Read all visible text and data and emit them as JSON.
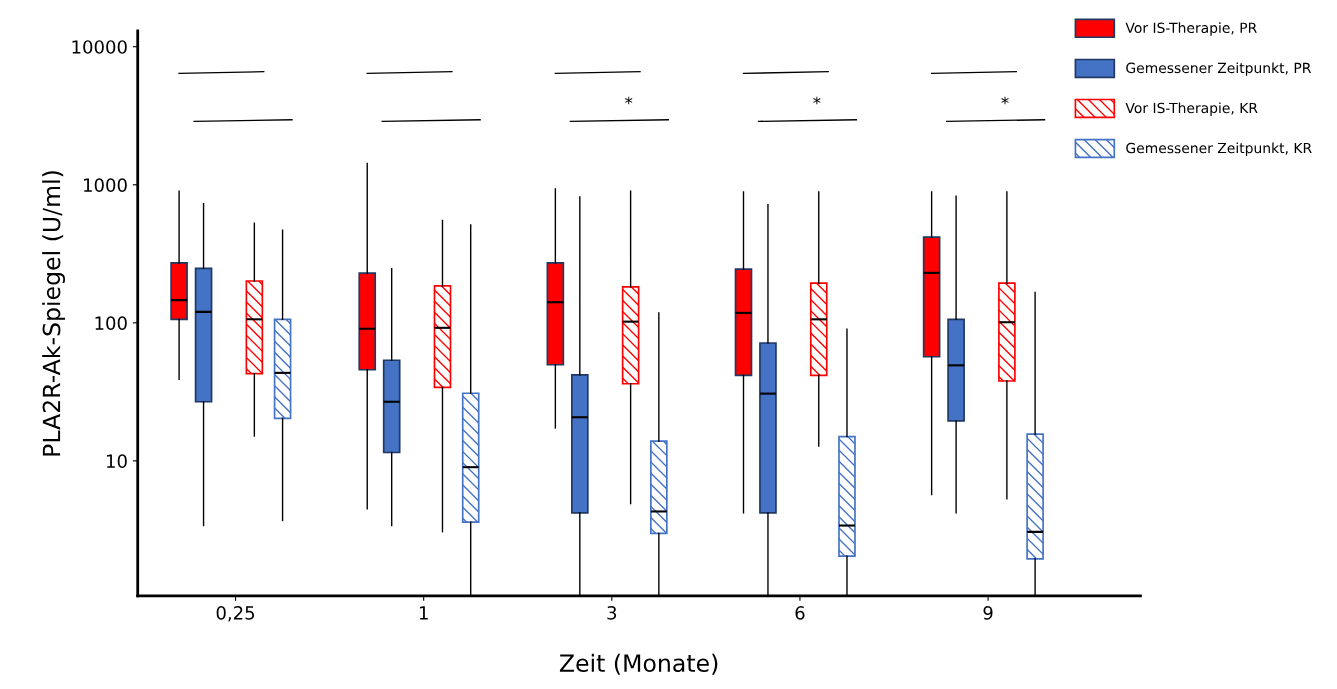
{
  "chart_data": {
    "type": "box",
    "xlabel": "Zeit (Monate)",
    "ylabel": "PLA2R-Ak-Spiegel (U/ml)",
    "categories": [
      "0,25",
      "1",
      "3",
      "6",
      "9"
    ],
    "log": "y",
    "ylim": [
      1.05,
      13000
    ],
    "yticks": [
      10,
      100,
      1000,
      10000
    ],
    "grid": false,
    "legend": "top right",
    "series": [
      {
        "name": "Vor IS-Therapie, PR",
        "color": "#ff0000",
        "boxes": [
          {
            "low": 39,
            "q1": 106,
            "median": 146,
            "q3": 272,
            "high": 900
          },
          {
            "low": 4.5,
            "q1": 45.7,
            "median": 90.6,
            "q3": 229,
            "high": 1430
          },
          {
            "low": 17.3,
            "q1": 49.7,
            "median": 141,
            "q3": 272,
            "high": 933
          },
          {
            "low": 4.2,
            "q1": 41.6,
            "median": 118,
            "q3": 245,
            "high": 887
          },
          {
            "low": 5.7,
            "q1": 56.8,
            "median": 230,
            "q3": 418,
            "high": 887
          }
        ]
      },
      {
        "name": "Gemessener Zeitpunkt, PR",
        "color": "#4472c4",
        "boxes": [
          {
            "low": 3.4,
            "q1": 26.8,
            "median": 120,
            "q3": 248,
            "high": 730
          },
          {
            "low": 3.4,
            "q1": 11.5,
            "median": 26.8,
            "q3": 53.6,
            "high": 247
          },
          {
            "low": 1.05,
            "q1": 4.2,
            "median": 20.7,
            "q3": 42,
            "high": 817
          },
          {
            "low": 1.05,
            "q1": 4.2,
            "median": 30.7,
            "q3": 71.4,
            "high": 718
          },
          {
            "low": 4.2,
            "q1": 19.5,
            "median": 49.2,
            "q3": 106,
            "high": 828
          }
        ]
      },
      {
        "name": "Vor IS-Therapie, KR",
        "color": "#ff0000",
        "boxes": [
          {
            "low": 15.1,
            "q1": 42.8,
            "median": 106,
            "q3": 201,
            "high": 527
          },
          {
            "low": 3.07,
            "q1": 34.1,
            "median": 92,
            "q3": 185,
            "high": 552
          },
          {
            "low": 4.9,
            "q1": 36.2,
            "median": 102,
            "q3": 182,
            "high": 900
          },
          {
            "low": 12.8,
            "q1": 41.6,
            "median": 106,
            "q3": 194,
            "high": 887
          },
          {
            "low": 5.3,
            "q1": 37.9,
            "median": 101,
            "q3": 194,
            "high": 887
          }
        ]
      },
      {
        "name": "Gemessener Zeitpunkt, KR",
        "color": "#4472c4",
        "boxes": [
          {
            "low": 3.7,
            "q1": 20.3,
            "median": 43.4,
            "q3": 106,
            "high": 468
          },
          {
            "low": 1.05,
            "q1": 3.6,
            "median": 9.0,
            "q3": 30.9,
            "high": 512
          },
          {
            "low": 1.05,
            "q1": 2.98,
            "median": 4.3,
            "q3": 13.9,
            "high": 118
          },
          {
            "low": 1.05,
            "q1": 2.04,
            "median": 3.4,
            "q3": 15.0,
            "high": 90
          },
          {
            "low": 1.05,
            "q1": 1.95,
            "median": 3.06,
            "q3": 15.6,
            "high": 166
          }
        ]
      }
    ],
    "annotations": [
      "*",
      "*",
      "*"
    ]
  }
}
